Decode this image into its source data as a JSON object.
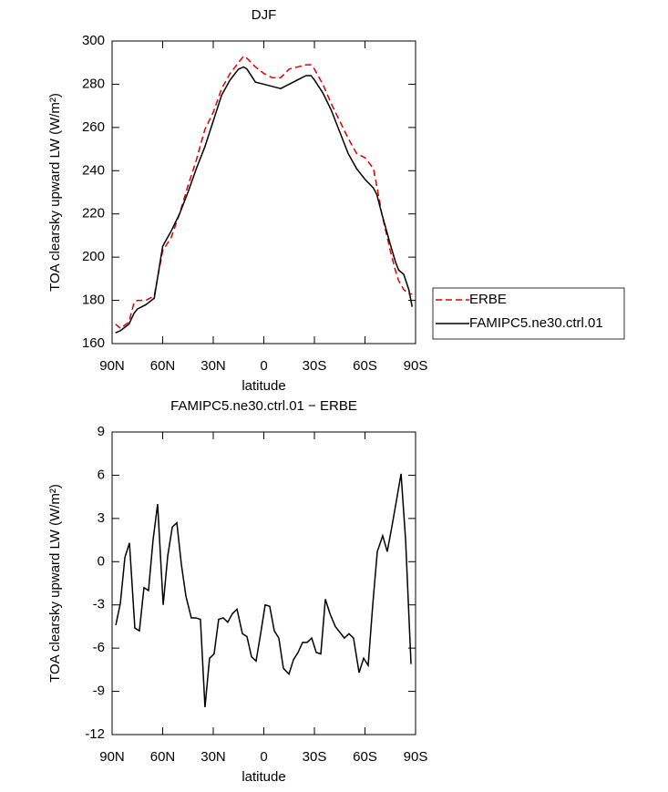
{
  "chart_data": [
    {
      "type": "line",
      "title": "DJF",
      "xlabel": "latitude",
      "ylabel": "TOA clearsky upward LW (W/m²)",
      "x": [
        88,
        85,
        80,
        77,
        75,
        70,
        65,
        60,
        55,
        50,
        45,
        40,
        35,
        30,
        25,
        20,
        15,
        12,
        10,
        5,
        0,
        -5,
        -10,
        -15,
        -20,
        -25,
        -28,
        -30,
        -35,
        -40,
        -45,
        -50,
        -55,
        -60,
        -65,
        -67,
        -70,
        -75,
        -78,
        -80,
        -83,
        -86,
        -88
      ],
      "series": [
        {
          "name": "ERBE",
          "color": "#e00000",
          "linestyle": "dashed",
          "values": [
            169,
            167,
            170,
            179,
            180,
            180,
            182,
            203,
            209,
            220,
            233,
            245,
            259,
            267,
            278,
            285,
            290,
            293,
            292,
            288,
            285,
            283,
            283,
            287,
            288,
            289,
            289,
            287,
            280,
            271,
            263,
            255,
            248,
            246,
            241,
            233,
            220,
            203,
            194,
            189,
            185,
            183,
            183
          ]
        },
        {
          "name": "FAMIPC5.ne30.ctrl.01",
          "color": "#000000",
          "linestyle": "solid",
          "values": [
            165,
            166,
            169,
            174,
            176,
            178,
            181,
            205,
            212,
            220,
            230,
            241,
            251,
            263,
            275,
            282,
            287,
            288,
            287,
            281,
            280,
            279,
            278,
            280,
            282,
            284,
            284,
            282,
            276,
            268,
            258,
            248,
            241,
            236,
            232,
            229,
            220,
            206,
            198,
            194,
            192,
            185,
            177
          ]
        }
      ],
      "xlim": [
        90,
        -90
      ],
      "xticks": [
        {
          "value": 90,
          "label": "90N"
        },
        {
          "value": 60,
          "label": "60N"
        },
        {
          "value": 30,
          "label": "30N"
        },
        0,
        {
          "value": -30,
          "label": "30S"
        },
        {
          "value": -60,
          "label": "60S"
        },
        {
          "value": -90,
          "label": "90S"
        }
      ],
      "ylim": [
        160,
        300
      ],
      "yticks": [
        160,
        180,
        200,
        220,
        240,
        260,
        280,
        300
      ],
      "legend": "right"
    },
    {
      "type": "line",
      "title": "FAMIPC5.ne30.ctrl.01 − ERBE",
      "xlabel": "latitude",
      "ylabel": "TOA clearsky upward LW (W/m²)",
      "x": [
        87.8,
        85.1,
        82.4,
        79.7,
        76.5,
        73.8,
        71.1,
        68.4,
        65.7,
        63.0,
        59.7,
        57.0,
        54.3,
        51.6,
        48.9,
        46.2,
        43.0,
        40.3,
        37.6,
        34.9,
        32.2,
        29.5,
        26.8,
        24.1,
        21.4,
        18.6,
        15.9,
        12.7,
        10.0,
        7.3,
        4.6,
        1.9,
        -0.8,
        -3.5,
        -6.2,
        -8.9,
        -11.6,
        -14.9,
        -17.6,
        -20.3,
        -23.0,
        -25.7,
        -28.4,
        -31.1,
        -33.8,
        -36.5,
        -39.2,
        -42.4,
        -45.1,
        -47.8,
        -50.5,
        -53.2,
        -56.5,
        -59.2,
        -61.9,
        -64.6,
        -67.3,
        -70.5,
        -73.2,
        -75.9,
        -78.6,
        -81.4,
        -84.1,
        -87.3
      ],
      "values": [
        -4.4,
        -2.9,
        0.3,
        1.3,
        -4.6,
        -4.8,
        -1.8,
        -2.0,
        1.5,
        4.0,
        -3.0,
        0.4,
        2.4,
        2.7,
        -0.2,
        -2.4,
        -3.9,
        -3.9,
        -4.0,
        -10.1,
        -6.7,
        -6.4,
        -4.0,
        -3.9,
        -4.2,
        -3.6,
        -3.3,
        -5.0,
        -5.2,
        -6.6,
        -6.9,
        -5.0,
        -3.0,
        -3.1,
        -4.8,
        -5.3,
        -7.4,
        -7.8,
        -6.8,
        -6.3,
        -5.6,
        -5.6,
        -5.3,
        -6.3,
        -6.4,
        -2.6,
        -3.6,
        -4.5,
        -4.9,
        -5.3,
        -5.0,
        -5.3,
        -7.7,
        -6.7,
        -7.2,
        -3.0,
        0.7,
        1.8,
        0.7,
        2.4,
        4.2,
        6.1,
        1.5,
        -7.1
      ],
      "color": "#000000",
      "xlim": [
        90,
        -90
      ],
      "xticks": [
        {
          "value": 90,
          "label": "90N"
        },
        {
          "value": 60,
          "label": "60N"
        },
        {
          "value": 30,
          "label": "30N"
        },
        0,
        {
          "value": -30,
          "label": "30S"
        },
        {
          "value": -60,
          "label": "60S"
        },
        {
          "value": -90,
          "label": "90S"
        }
      ],
      "ylim": [
        -12,
        9
      ],
      "yticks": [
        -12,
        -9,
        -6,
        -3,
        0,
        3,
        6,
        9
      ]
    }
  ]
}
